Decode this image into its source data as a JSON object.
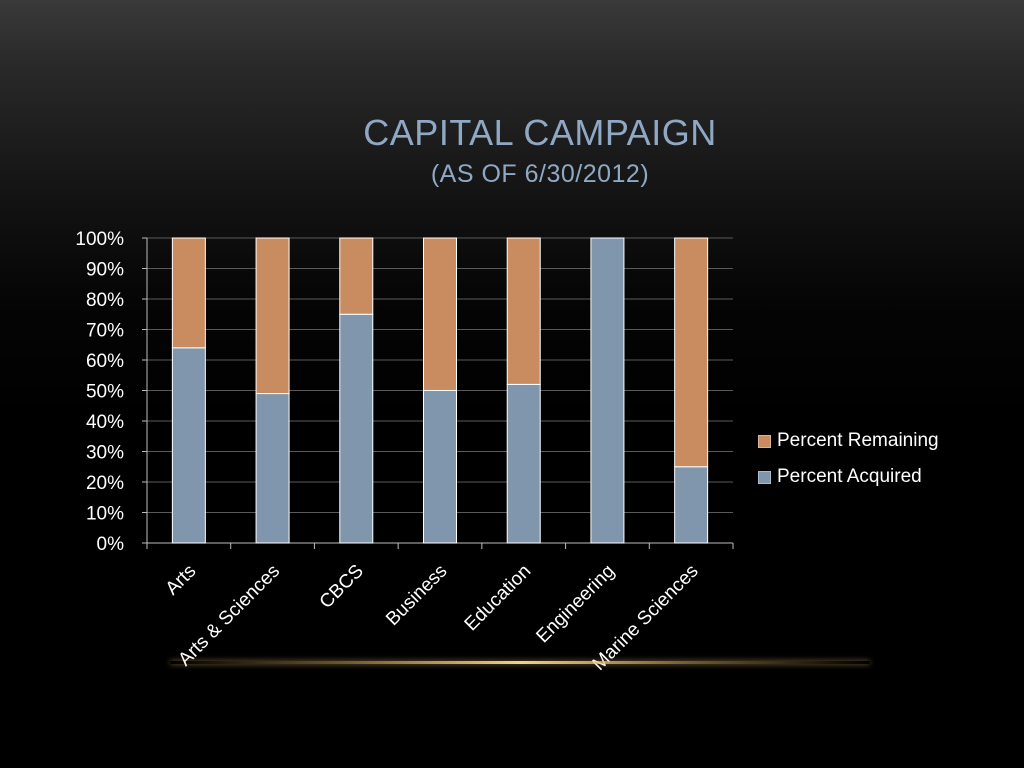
{
  "title": {
    "line1": "CAPITAL CAMPAIGN",
    "line2": "(AS OF 6/30/2012)"
  },
  "colors": {
    "acquired": "#8096ad",
    "remaining": "#c98c60",
    "title": "#8fa8c4",
    "text": "#ffffff",
    "grid": "#5a5a5a"
  },
  "chart_data": {
    "type": "bar",
    "stacked": true,
    "categories": [
      "Arts",
      "Arts & Sciences",
      "CBCS",
      "Business",
      "Education",
      "Engineering",
      "Marine Sciences"
    ],
    "series": [
      {
        "name": "Percent Acquired",
        "values": [
          64,
          49,
          75,
          50,
          52,
          100,
          25
        ]
      },
      {
        "name": "Percent Remaining",
        "values": [
          36,
          51,
          25,
          50,
          48,
          0,
          75
        ]
      }
    ],
    "y_ticks": [
      "0%",
      "10%",
      "20%",
      "30%",
      "40%",
      "50%",
      "60%",
      "70%",
      "80%",
      "90%",
      "100%"
    ],
    "ylim": [
      0,
      100
    ],
    "grid": true,
    "legend_position": "right"
  }
}
